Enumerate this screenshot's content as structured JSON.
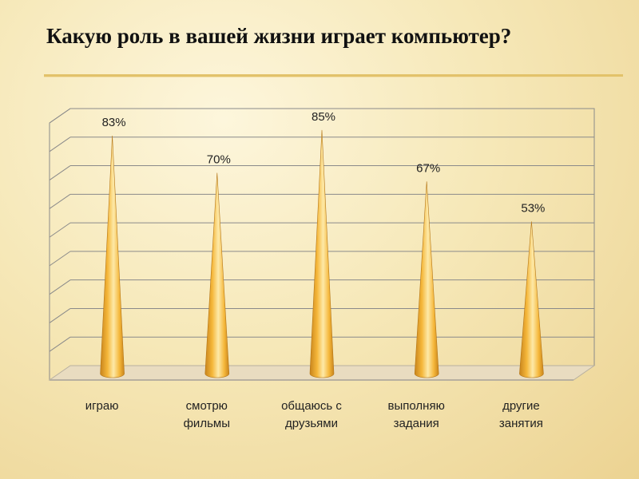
{
  "title": "Какую роль в вашей жизни играет компьютер?",
  "colors": {
    "cone_light": "#fde9a8",
    "cone_mid": "#f5b73a",
    "cone_dark": "#c8841c",
    "grid": "#8a8a8a",
    "floor": "#b8b0a0"
  },
  "chart_data": {
    "type": "bar",
    "shape": "cone",
    "categories": [
      [
        "играю"
      ],
      [
        "смотрю",
        "фильмы"
      ],
      [
        "общаюсь с",
        "друзьями"
      ],
      [
        "выполняю",
        "задания"
      ],
      [
        "другие",
        "занятия"
      ]
    ],
    "values": [
      83,
      70,
      85,
      67,
      53
    ],
    "data_labels": [
      "83%",
      "70%",
      "85%",
      "67%",
      "53%"
    ],
    "ylim": [
      0,
      90
    ],
    "grid": true,
    "legend": "none"
  }
}
